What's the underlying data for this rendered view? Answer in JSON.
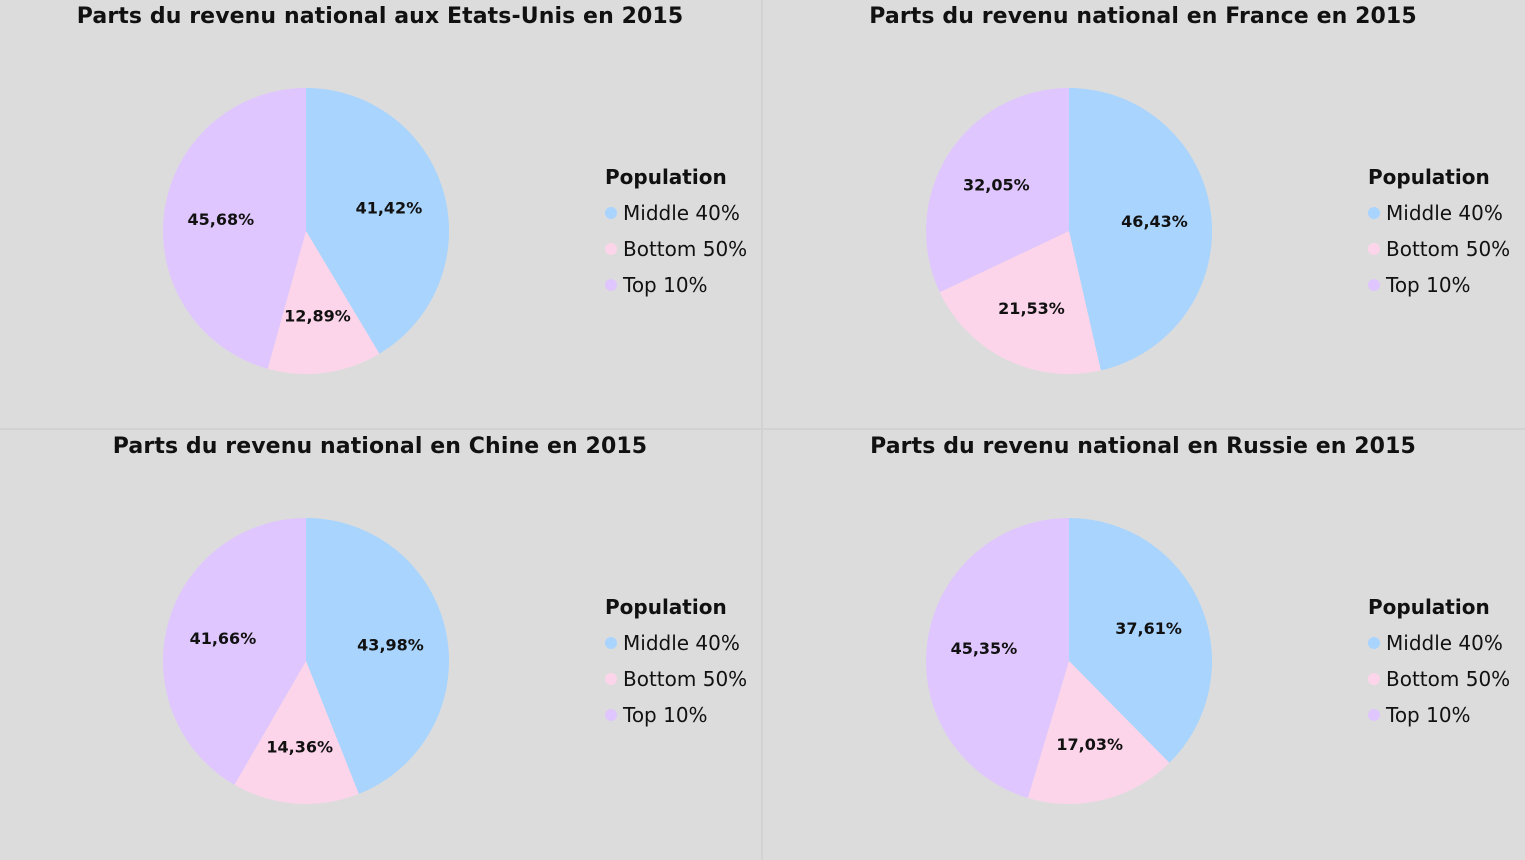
{
  "legend_title": "Population",
  "colors": {
    "Middle 40%": "#a8d4fe",
    "Bottom 50%": "#fdd5ea",
    "Top 10%": "#e0c6fe"
  },
  "chart_data": [
    {
      "type": "pie",
      "title": "Parts du revenu national aux Etats-Unis en 2015",
      "labels": [
        "Middle 40%",
        "Bottom 50%",
        "Top 10%"
      ],
      "values": [
        41.42,
        12.89,
        45.68
      ],
      "value_labels": [
        "41,42%",
        "12,89%",
        "45,68%"
      ],
      "legend": [
        "Middle 40%",
        "Bottom 50%",
        "Top 10%"
      ],
      "legend_position": "right"
    },
    {
      "type": "pie",
      "title": "Parts du revenu national en France en 2015",
      "labels": [
        "Middle 40%",
        "Bottom 50%",
        "Top 10%"
      ],
      "values": [
        46.43,
        21.53,
        32.05
      ],
      "value_labels": [
        "46,43%",
        "21,53%",
        "32,05%"
      ],
      "legend": [
        "Middle 40%",
        "Bottom 50%",
        "Top 10%"
      ],
      "legend_position": "right"
    },
    {
      "type": "pie",
      "title": "Parts du revenu national en Chine en 2015",
      "labels": [
        "Middle 40%",
        "Bottom 50%",
        "Top 10%"
      ],
      "values": [
        43.98,
        14.36,
        41.66
      ],
      "value_labels": [
        "43,98%",
        "14,36%",
        "41,66%"
      ],
      "legend": [
        "Middle 40%",
        "Bottom 50%",
        "Top 10%"
      ],
      "legend_position": "right"
    },
    {
      "type": "pie",
      "title": "Parts du revenu national en Russie en 2015",
      "labels": [
        "Middle 40%",
        "Bottom 50%",
        "Top 10%"
      ],
      "values": [
        37.61,
        17.03,
        45.35
      ],
      "value_labels": [
        "37,61%",
        "17,03%",
        "45,35%"
      ],
      "legend": [
        "Middle 40%",
        "Bottom 50%",
        "Top 10%"
      ],
      "legend_position": "right"
    }
  ]
}
